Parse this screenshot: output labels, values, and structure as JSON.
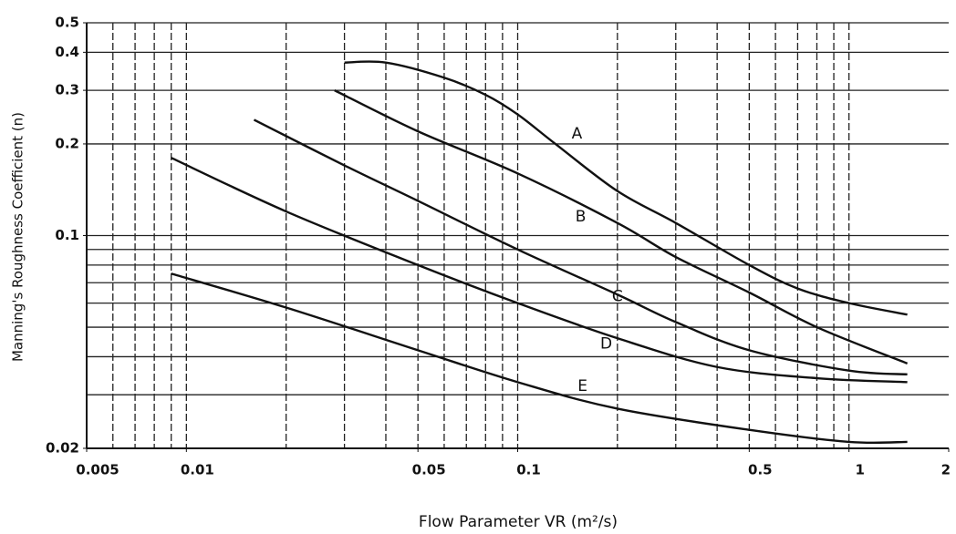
{
  "chart_data": {
    "type": "line",
    "xlabel": "Flow Parameter VR (m²/s)",
    "ylabel": "Manning's Roughness Coefficient (n)",
    "xscale": "log",
    "yscale": "log",
    "xlim": [
      0.005,
      2
    ],
    "ylim": [
      0.02,
      0.5
    ],
    "xticks": [
      0.005,
      0.01,
      0.05,
      0.1,
      0.5,
      1,
      2
    ],
    "yticks": [
      0.02,
      0.1,
      0.2,
      0.3,
      0.4,
      0.5
    ],
    "xgrid": [
      0.006,
      0.007,
      0.008,
      0.009,
      0.01,
      0.02,
      0.03,
      0.04,
      0.05,
      0.06,
      0.07,
      0.08,
      0.09,
      0.1,
      0.2,
      0.3,
      0.4,
      0.5,
      0.6,
      0.7,
      0.8,
      0.9,
      1
    ],
    "ygrid": [
      0.02,
      0.03,
      0.04,
      0.05,
      0.06,
      0.07,
      0.08,
      0.09,
      0.1,
      0.2,
      0.3,
      0.4,
      0.5
    ],
    "grid": true,
    "color": "#111111",
    "series": [
      {
        "x": [
          0.03,
          0.04,
          0.06,
          0.08,
          0.1,
          0.13,
          0.2,
          0.3,
          0.5,
          0.7,
          1,
          1.5
        ],
        "values": [
          0.37,
          0.37,
          0.33,
          0.29,
          0.25,
          0.2,
          0.14,
          0.11,
          0.08,
          0.067,
          0.06,
          0.055
        ]
      },
      {
        "x": [
          0.028,
          0.05,
          0.1,
          0.2,
          0.3,
          0.5,
          0.8,
          1.5
        ],
        "values": [
          0.3,
          0.22,
          0.16,
          0.11,
          0.085,
          0.065,
          0.05,
          0.038
        ]
      },
      {
        "x": [
          0.016,
          0.03,
          0.05,
          0.1,
          0.2,
          0.3,
          0.5,
          1,
          1.5
        ],
        "values": [
          0.24,
          0.17,
          0.13,
          0.09,
          0.064,
          0.052,
          0.042,
          0.036,
          0.035
        ]
      },
      {
        "x": [
          0.009,
          0.02,
          0.05,
          0.1,
          0.2,
          0.4,
          0.8,
          1.5
        ],
        "values": [
          0.18,
          0.12,
          0.08,
          0.06,
          0.046,
          0.037,
          0.034,
          0.033
        ]
      },
      {
        "x": [
          0.009,
          0.02,
          0.05,
          0.1,
          0.2,
          0.5,
          1,
          1.5
        ],
        "values": [
          0.075,
          0.058,
          0.042,
          0.033,
          0.027,
          0.023,
          0.021,
          0.021
        ]
      }
    ],
    "annotations": [
      {
        "text": "A",
        "x": 0.151,
        "y": 0.216
      },
      {
        "text": "B",
        "x": 0.155,
        "y": 0.115
      },
      {
        "text": "C",
        "x": 0.2,
        "y": 0.063
      },
      {
        "text": "D",
        "x": 0.185,
        "y": 0.044
      },
      {
        "text": "E",
        "x": 0.157,
        "y": 0.032
      }
    ]
  }
}
